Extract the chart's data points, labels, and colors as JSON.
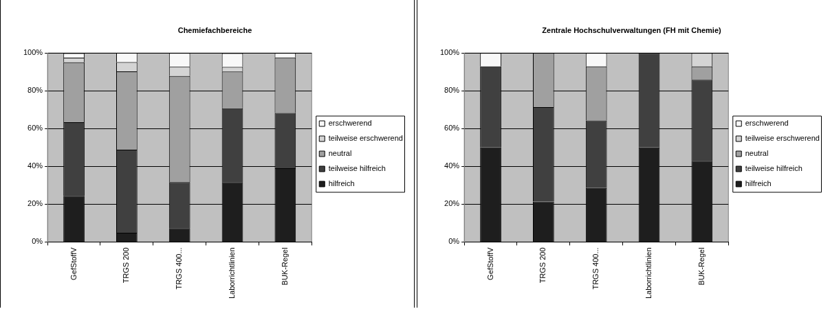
{
  "chart_data": [
    {
      "type": "bar",
      "title": "Chemiefachbereiche",
      "stacked": true,
      "categories": [
        "GefStoffV",
        "TRGS 200",
        "TRGS 400...",
        "Laborrichtlinien",
        "BUK-Regel"
      ],
      "series": [
        {
          "name": "hilfreich",
          "color": "#1e1e1e",
          "values": [
            24.4,
            4.9,
            7.3,
            31.7,
            39
          ]
        },
        {
          "name": "teilweise hilfreich",
          "color": "#404040",
          "values": [
            39,
            43.9,
            24.4,
            39,
            29.3
          ]
        },
        {
          "name": "neutral",
          "color": "#a0a0a0",
          "values": [
            31.7,
            41.5,
            56.1,
            19.5,
            29.3
          ]
        },
        {
          "name": "teilweise erschwerend",
          "color": "#d4d4d4",
          "values": [
            2.4,
            4.9,
            4.9,
            2.4,
            0
          ]
        },
        {
          "name": "erschwerend",
          "color": "#f8f8f8",
          "values": [
            2.4,
            4.9,
            7.3,
            7.3,
            2.4
          ]
        }
      ],
      "ylim": [
        0,
        100
      ],
      "yticks": [
        {
          "value": 0,
          "label": "0%"
        },
        {
          "value": 20,
          "label": "20%"
        },
        {
          "value": 40,
          "label": "40%"
        },
        {
          "value": 60,
          "label": "60%"
        },
        {
          "value": 80,
          "label": "80%"
        },
        {
          "value": 100,
          "label": "100%"
        }
      ],
      "grid": "y",
      "legend": "right"
    },
    {
      "type": "bar",
      "title": "Zentrale Hochschulverwaltungen (FH mit Chemie)",
      "stacked": true,
      "categories": [
        "GefStoffV",
        "TRGS 200",
        "TRGS 400...",
        "Laborrichtlinien",
        "BUK-Regel"
      ],
      "series": [
        {
          "name": "hilfreich",
          "color": "#1e1e1e",
          "values": [
            50,
            21.4,
            28.6,
            50,
            42.9
          ]
        },
        {
          "name": "teilweise hilfreich",
          "color": "#404040",
          "values": [
            42.9,
            50,
            35.7,
            50,
            42.9
          ]
        },
        {
          "name": "neutral",
          "color": "#a0a0a0",
          "values": [
            0,
            28.6,
            28.6,
            0,
            7.1
          ]
        },
        {
          "name": "teilweise erschwerend",
          "color": "#d4d4d4",
          "values": [
            0,
            0,
            0,
            0,
            7.1
          ]
        },
        {
          "name": "erschwerend",
          "color": "#f8f8f8",
          "values": [
            7.1,
            0,
            7.1,
            0,
            0
          ]
        }
      ],
      "ylim": [
        0,
        100
      ],
      "yticks": [
        {
          "value": 0,
          "label": "0%"
        },
        {
          "value": 20,
          "label": "20%"
        },
        {
          "value": 40,
          "label": "40%"
        },
        {
          "value": 60,
          "label": "60%"
        },
        {
          "value": 80,
          "label": "80%"
        },
        {
          "value": 100,
          "label": "100%"
        }
      ],
      "grid": "y",
      "legend": "right"
    }
  ]
}
